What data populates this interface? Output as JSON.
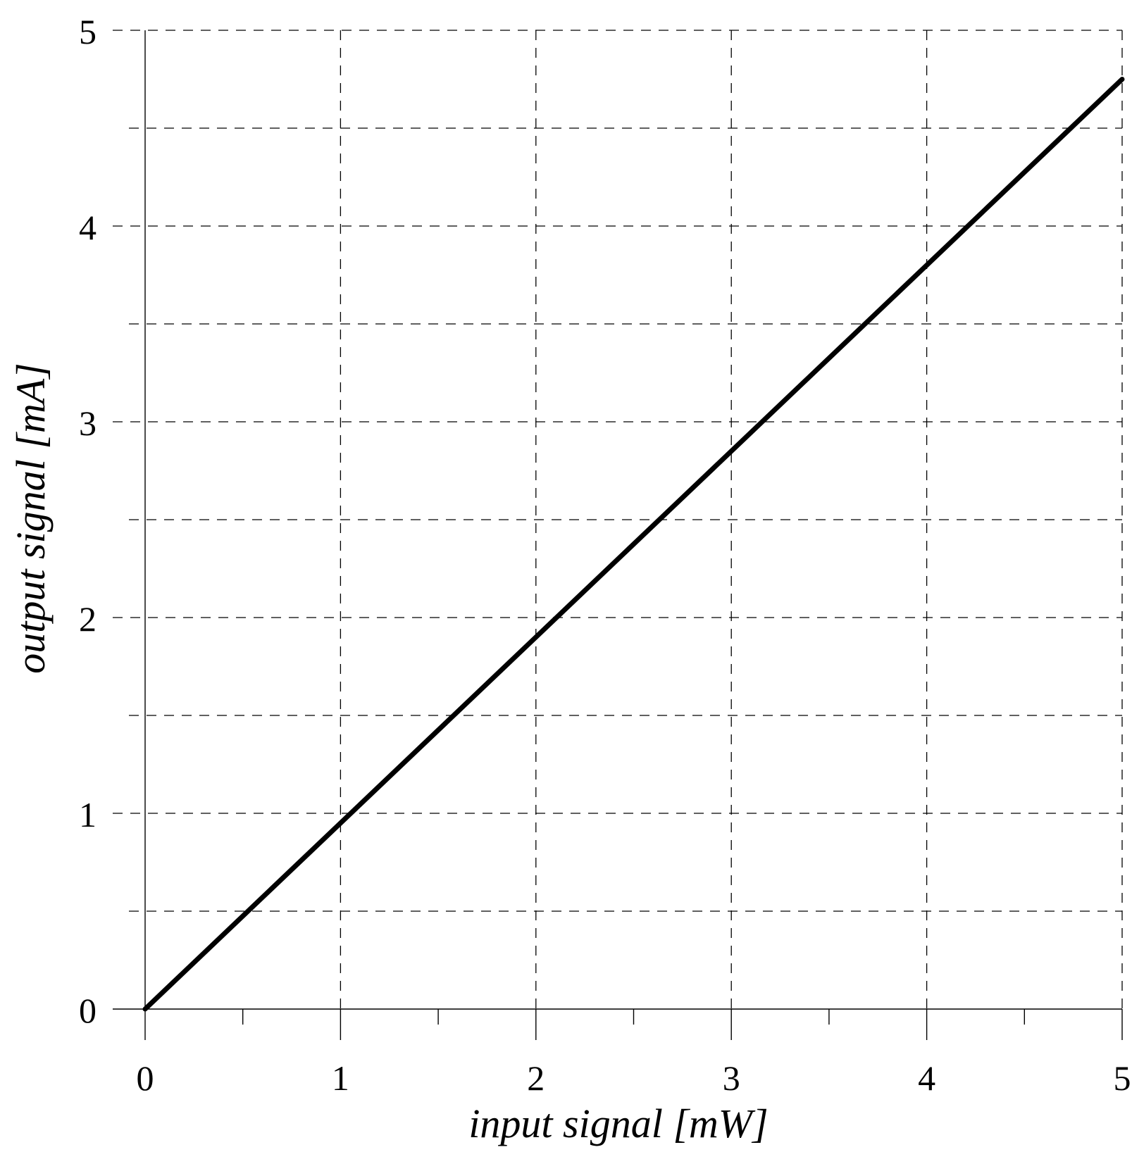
{
  "chart_data": {
    "type": "line",
    "title": "",
    "xlabel": "input signal [mW]",
    "ylabel": "output signal [mA]",
    "xlim": [
      0,
      5
    ],
    "ylim": [
      0,
      5
    ],
    "x_ticks": [
      0,
      1,
      2,
      3,
      4,
      5
    ],
    "x_tick_labels": [
      "0",
      "1",
      "2",
      "3",
      "4",
      "5"
    ],
    "x_minor_ticks": [
      0.5,
      1.5,
      2.5,
      3.5,
      4.5
    ],
    "y_ticks": [
      0,
      1,
      2,
      3,
      4,
      5
    ],
    "y_tick_labels": [
      "0",
      "1",
      "2",
      "3",
      "4",
      "5"
    ],
    "y_minor_ticks": [
      0.5,
      1.5,
      2.5,
      3.5,
      4.5
    ],
    "grid": true,
    "grid_style": "dashed",
    "legend": "none",
    "series": [
      {
        "x": [
          0,
          5
        ],
        "y": [
          0,
          4.75
        ],
        "color": "#000000"
      }
    ]
  }
}
